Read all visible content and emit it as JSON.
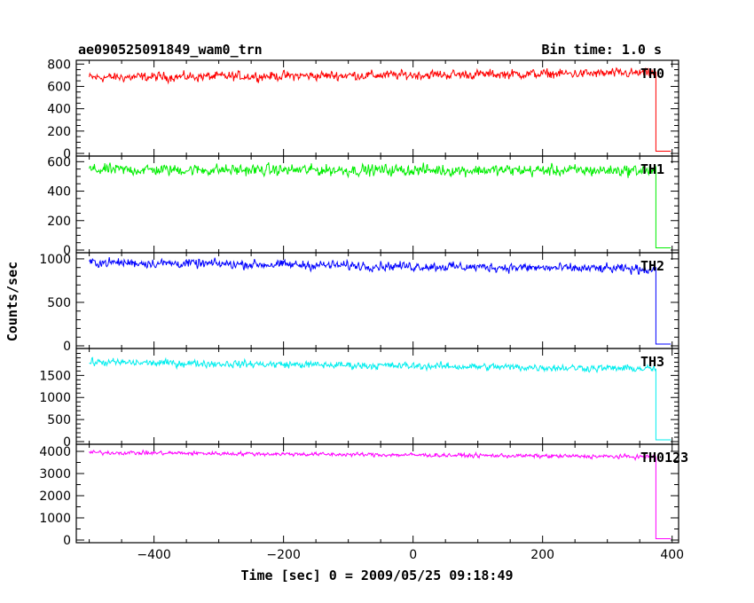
{
  "header": {
    "title": "ae090525091849_wam0_trn",
    "bin_time": "Bin time: 1.0 s"
  },
  "chart_data": {
    "type": "line",
    "xlabel": "Time [sec] 0 = 2009/05/25 09:18:49",
    "ylabel": "Counts/sec",
    "xlim": [
      -520,
      410
    ],
    "x_ticks": [
      -400,
      -200,
      0,
      200,
      400
    ],
    "x_tick_labels": [
      "−400",
      "−200",
      "0",
      "200",
      "400"
    ],
    "x_minor_step": 50,
    "data_range": [
      -500,
      375
    ],
    "drop_time": 375,
    "drop_end": 398,
    "series": [
      {
        "name": "TH0",
        "color": "#ff0000",
        "ylim": [
          0,
          810
        ],
        "start": 680,
        "end": 720,
        "noise": 28,
        "drop_value": 20,
        "y_ticks": [
          0,
          200,
          400,
          600,
          800
        ],
        "y_minor_step": 50
      },
      {
        "name": "TH1",
        "color": "#00ee00",
        "ylim": [
          0,
          620
        ],
        "start": 545,
        "end": 540,
        "noise": 26,
        "drop_value": 15,
        "y_ticks": [
          0,
          200,
          400,
          600
        ],
        "y_minor_step": 50
      },
      {
        "name": "TH2",
        "color": "#0000ff",
        "ylim": [
          0,
          1040
        ],
        "start": 960,
        "end": 880,
        "noise": 35,
        "drop_value": 20,
        "y_ticks": [
          0,
          500,
          1000
        ],
        "y_minor_step": 100
      },
      {
        "name": "TH3",
        "color": "#00eeee",
        "ylim": [
          0,
          2050
        ],
        "start": 1800,
        "end": 1650,
        "noise": 55,
        "drop_value": 40,
        "y_ticks": [
          0,
          500,
          1000,
          1500
        ],
        "y_minor_step": 100
      },
      {
        "name": "TH0123",
        "color": "#ff00ff",
        "ylim": [
          0,
          4200
        ],
        "start": 3950,
        "end": 3750,
        "noise": 60,
        "drop_value": 60,
        "y_ticks": [
          0,
          1000,
          2000,
          3000,
          4000
        ],
        "y_minor_step": 500
      }
    ]
  }
}
